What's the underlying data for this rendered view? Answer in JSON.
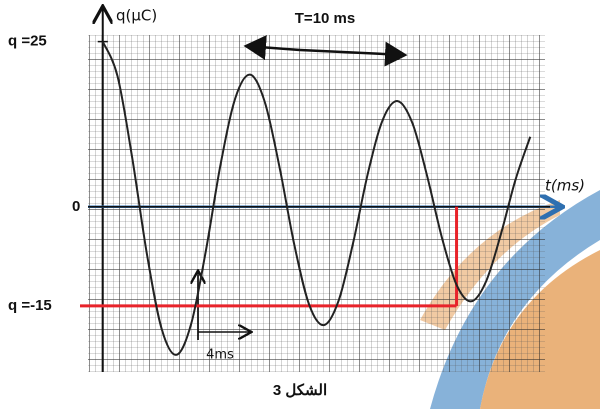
{
  "chart_data": {
    "type": "line",
    "x_label": "t(ms)",
    "y_label": "q(μC)",
    "annotations": [
      "T=10 ms",
      "4ms"
    ],
    "caption": "الشكل 3",
    "x": [
      0,
      1,
      2,
      3,
      4,
      5,
      6,
      7,
      8,
      9,
      10,
      11,
      12,
      13,
      14,
      15,
      16,
      17,
      18,
      19,
      20,
      21,
      22,
      23,
      24,
      25,
      26,
      27,
      28,
      29
    ],
    "series": [
      {
        "color": "#222222",
        "values": [
          25,
          19.8,
          7.4,
          -7.2,
          -18.5,
          -22.4,
          -17.7,
          -6.6,
          6.5,
          16.5,
          20,
          15.8,
          5.9,
          -5.8,
          -14.8,
          -17.9,
          -14.2,
          -5.3,
          5.2,
          13.2,
          16,
          12.7,
          4.7,
          -4.6,
          -11.8,
          -14.3,
          -11.3,
          -4.2,
          4.1,
          10.6
        ]
      }
    ],
    "reference_line": {
      "q": -15,
      "t": 24,
      "color": "#e8232a"
    },
    "xlim": [
      -1,
      30
    ],
    "ylim": [
      -25,
      26
    ],
    "yticks": [
      {
        "value": 25,
        "label": "q  =25"
      },
      0,
      {
        "value": -15,
        "label": "q  =-15"
      }
    ],
    "grid": true
  }
}
